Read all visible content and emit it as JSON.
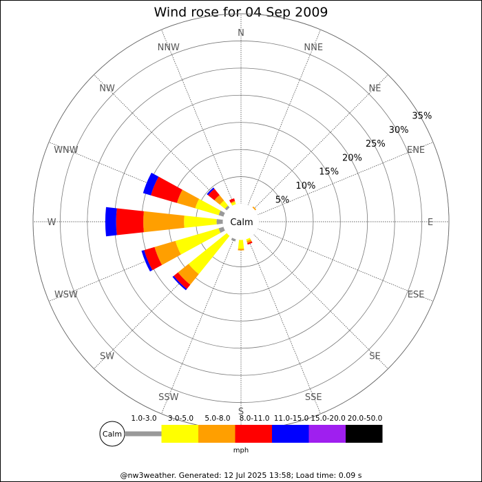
{
  "chart_data": {
    "type": "windrose",
    "title": "Wind rose for 04 Sep 2009",
    "center_label": "Calm",
    "directions": [
      "N",
      "NNE",
      "NE",
      "ENE",
      "E",
      "ESE",
      "SE",
      "SSE",
      "S",
      "SSW",
      "SW",
      "WSW",
      "W",
      "WNW",
      "NW",
      "NNW"
    ],
    "radial_ticks": [
      "5%",
      "10%",
      "15%",
      "20%",
      "25%",
      "30%",
      "35%"
    ],
    "radial_values": [
      5,
      10,
      15,
      20,
      25,
      30,
      35
    ],
    "radial_max": 35,
    "bins": [
      {
        "label": "1.0-3.0",
        "color": "#999999"
      },
      {
        "label": "3.0-5.0",
        "color": "#ffff00"
      },
      {
        "label": "5.0-8.0",
        "color": "#ff9f00"
      },
      {
        "label": "8.0-11.0",
        "color": "#ff0000"
      },
      {
        "label": "11.0-15.0",
        "color": "#0000ff"
      },
      {
        "label": "15.0-20.0",
        "color": "#9f1fef"
      },
      {
        "label": "20.0-50.0",
        "color": "#000000"
      }
    ],
    "legend_calm": "Calm",
    "legend_unit": "mph",
    "series": [
      {
        "direction": "N",
        "values": [
          0,
          0,
          0,
          0,
          0,
          0,
          0
        ]
      },
      {
        "direction": "NNE",
        "values": [
          0,
          0,
          0,
          0,
          0,
          0,
          0
        ]
      },
      {
        "direction": "NE",
        "values": [
          0,
          0,
          0.3,
          0,
          0,
          0,
          0
        ]
      },
      {
        "direction": "ENE",
        "values": [
          0,
          0,
          0,
          0,
          0,
          0,
          0
        ]
      },
      {
        "direction": "E",
        "values": [
          0,
          0,
          0,
          0,
          0,
          0,
          0
        ]
      },
      {
        "direction": "ESE",
        "values": [
          0,
          0,
          0,
          0,
          0,
          0,
          0
        ]
      },
      {
        "direction": "SE",
        "values": [
          0,
          0,
          0,
          0,
          0,
          0,
          0
        ]
      },
      {
        "direction": "SSE",
        "values": [
          0,
          0.4,
          0.4,
          0.3,
          0,
          0,
          0
        ]
      },
      {
        "direction": "S",
        "values": [
          0,
          1.7,
          0.3,
          0,
          0,
          0,
          0
        ]
      },
      {
        "direction": "SSW",
        "values": [
          0.5,
          0,
          0,
          0,
          0,
          0,
          0
        ]
      },
      {
        "direction": "SW",
        "values": [
          0,
          9.1,
          2.5,
          1.0,
          0.3,
          0,
          0
        ]
      },
      {
        "direction": "WSW",
        "values": [
          1.0,
          8.3,
          4.0,
          2.0,
          0.5,
          0,
          0
        ]
      },
      {
        "direction": "W",
        "values": [
          1.2,
          6.0,
          7.5,
          5.0,
          2.0,
          0,
          0
        ]
      },
      {
        "direction": "WNW",
        "values": [
          1.0,
          4.5,
          3.5,
          5.0,
          1.5,
          0,
          0
        ]
      },
      {
        "direction": "NW",
        "values": [
          0.5,
          1.2,
          1.3,
          1.5,
          0.3,
          0,
          0
        ]
      },
      {
        "direction": "NNW",
        "values": [
          0,
          0.5,
          0.2,
          0.5,
          0,
          0,
          0
        ]
      }
    ]
  },
  "footer": "@nw3weather. Generated: 12 Jul 2025 13:58; Load time: 0.09 s"
}
